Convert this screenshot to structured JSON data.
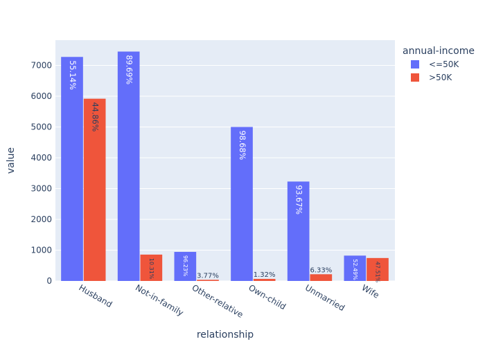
{
  "chart_data": {
    "type": "bar",
    "barmode": "group",
    "title": "",
    "xlabel": "relationship",
    "ylabel": "value",
    "ylim": [
      0,
      7820
    ],
    "yticks": [
      0,
      1000,
      2000,
      3000,
      4000,
      5000,
      6000,
      7000
    ],
    "categories": [
      "Husband",
      "Not-in-family",
      "Other-relative",
      "Own-child",
      "Unmarried",
      "Wife"
    ],
    "legend": {
      "title": "annual-income",
      "placement": "top-right"
    },
    "series": [
      {
        "name": "<=50K",
        "color": "#636efa",
        "values": [
          7275,
          7449,
          944,
          5001,
          3228,
          823
        ],
        "labels": [
          "55.14%",
          "89.69%",
          "96.23%",
          "98.68%",
          "93.67%",
          "52.49%"
        ]
      },
      {
        "name": ">50K",
        "color": "#ef553b",
        "values": [
          5918,
          856,
          37,
          67,
          218,
          745
        ],
        "labels": [
          "44.86%",
          "10.31%",
          "3.77%",
          "1.32%",
          "6.33%",
          "47.51%"
        ]
      }
    ],
    "grid": true,
    "plot_background": "#e5ecf6"
  }
}
